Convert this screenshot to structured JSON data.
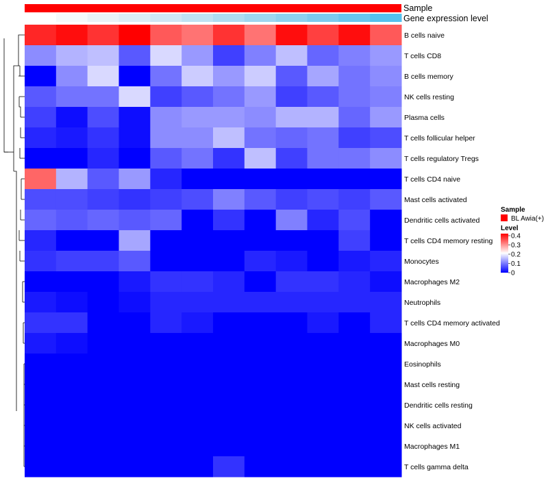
{
  "chart_data": {
    "type": "heatmap",
    "annotations": {
      "sample_label": "Sample",
      "sample_value": "BL Awia(+)",
      "sample_color": "#ff0000",
      "gene_label": "Gene expression level",
      "gene_colors": [
        "#ffffff",
        "#f5f9fb",
        "#e9f2f7",
        "#dcedf6",
        "#cfe7f5",
        "#bfe2f3",
        "#aedcf1",
        "#9ed6f0",
        "#8dd1ef",
        "#7ccbee",
        "#68c6ee",
        "#54c1ee"
      ]
    },
    "rows": [
      "B cells naive",
      "T cells CD8",
      "B cells memory",
      "NK cells resting",
      "Plasma cells",
      "T cells follicular helper",
      "T cells regulatory  Tregs",
      "T cells CD4 naive",
      "Mast cells activated",
      "Dendritic cells activated",
      "T cells CD4 memory resting",
      "Monocytes",
      "Macrophages M2",
      "Neutrophils",
      "T cells CD4 memory activated",
      "Macrophages M0",
      "Eosinophils",
      "Mast cells resting",
      "Dendritic cells resting",
      "NK cells activated",
      "Macrophages M1",
      "T cells gamma delta"
    ],
    "values": [
      [
        0.37,
        0.39,
        0.36,
        0.4,
        0.33,
        0.31,
        0.36,
        0.31,
        0.39,
        0.35,
        0.39,
        0.33
      ],
      [
        0.11,
        0.14,
        0.15,
        0.07,
        0.17,
        0.12,
        0.05,
        0.1,
        0.15,
        0.08,
        0.1,
        0.12
      ],
      [
        0.0,
        0.11,
        0.17,
        0.0,
        0.09,
        0.16,
        0.12,
        0.16,
        0.07,
        0.13,
        0.09,
        0.11
      ],
      [
        0.07,
        0.09,
        0.09,
        0.17,
        0.05,
        0.07,
        0.09,
        0.12,
        0.05,
        0.07,
        0.09,
        0.1
      ],
      [
        0.05,
        0.01,
        0.06,
        0.01,
        0.11,
        0.12,
        0.12,
        0.11,
        0.14,
        0.14,
        0.08,
        0.12
      ],
      [
        0.03,
        0.02,
        0.04,
        0.01,
        0.11,
        0.11,
        0.15,
        0.09,
        0.08,
        0.09,
        0.05,
        0.06
      ],
      [
        0.0,
        0.0,
        0.03,
        0.0,
        0.07,
        0.09,
        0.04,
        0.15,
        0.05,
        0.09,
        0.09,
        0.11
      ],
      [
        0.32,
        0.14,
        0.07,
        0.12,
        0.03,
        0.0,
        0.0,
        0.0,
        0.0,
        0.0,
        0.0,
        0.0
      ],
      [
        0.06,
        0.06,
        0.05,
        0.04,
        0.05,
        0.06,
        0.1,
        0.07,
        0.05,
        0.06,
        0.05,
        0.07
      ],
      [
        0.08,
        0.07,
        0.08,
        0.07,
        0.08,
        0.0,
        0.04,
        0.0,
        0.1,
        0.03,
        0.06,
        0.0
      ],
      [
        0.03,
        0.0,
        0.0,
        0.13,
        0.0,
        0.0,
        0.0,
        0.0,
        0.0,
        0.0,
        0.05,
        0.0
      ],
      [
        0.04,
        0.05,
        0.05,
        0.07,
        0.0,
        0.0,
        0.0,
        0.03,
        0.02,
        0.0,
        0.02,
        0.03
      ],
      [
        0.0,
        0.0,
        0.0,
        0.02,
        0.04,
        0.04,
        0.03,
        0.0,
        0.04,
        0.04,
        0.03,
        0.01
      ],
      [
        0.02,
        0.01,
        0.0,
        0.01,
        0.03,
        0.03,
        0.03,
        0.03,
        0.03,
        0.03,
        0.03,
        0.03
      ],
      [
        0.04,
        0.04,
        0.0,
        0.0,
        0.03,
        0.02,
        0.0,
        0.0,
        0.0,
        0.02,
        0.0,
        0.03
      ],
      [
        0.02,
        0.01,
        0.0,
        0.0,
        0.0,
        0.0,
        0.0,
        0.0,
        0.0,
        0.0,
        0.0,
        0.0
      ],
      [
        0.0,
        0.0,
        0.0,
        0.0,
        0.0,
        0.0,
        0.0,
        0.0,
        0.0,
        0.0,
        0.0,
        0.0
      ],
      [
        0.0,
        0.0,
        0.0,
        0.0,
        0.0,
        0.0,
        0.0,
        0.0,
        0.0,
        0.0,
        0.0,
        0.0
      ],
      [
        0.0,
        0.0,
        0.0,
        0.0,
        0.0,
        0.0,
        0.0,
        0.0,
        0.0,
        0.0,
        0.0,
        0.0
      ],
      [
        0.0,
        0.0,
        0.0,
        0.0,
        0.0,
        0.0,
        0.0,
        0.0,
        0.0,
        0.0,
        0.0,
        0.0
      ],
      [
        0.0,
        0.0,
        0.0,
        0.0,
        0.0,
        0.0,
        0.0,
        0.0,
        0.0,
        0.0,
        0.0,
        0.0
      ],
      [
        0.0,
        0.0,
        0.0,
        0.0,
        0.0,
        0.0,
        0.04,
        0.0,
        0.0,
        0.0,
        0.0,
        0.0
      ]
    ],
    "color_scale": {
      "min": 0,
      "max": 0.4,
      "stops": [
        {
          "value": 0.0,
          "color": "#0000ff"
        },
        {
          "value": 0.2,
          "color": "#ffffff"
        },
        {
          "value": 0.4,
          "color": "#ff0000"
        }
      ],
      "ticks": [
        "0.4",
        "0.3",
        "0.2",
        "0.1",
        "0"
      ]
    },
    "legend": {
      "sample_title": "Sample",
      "level_title": "Level",
      "placement": "right"
    }
  }
}
